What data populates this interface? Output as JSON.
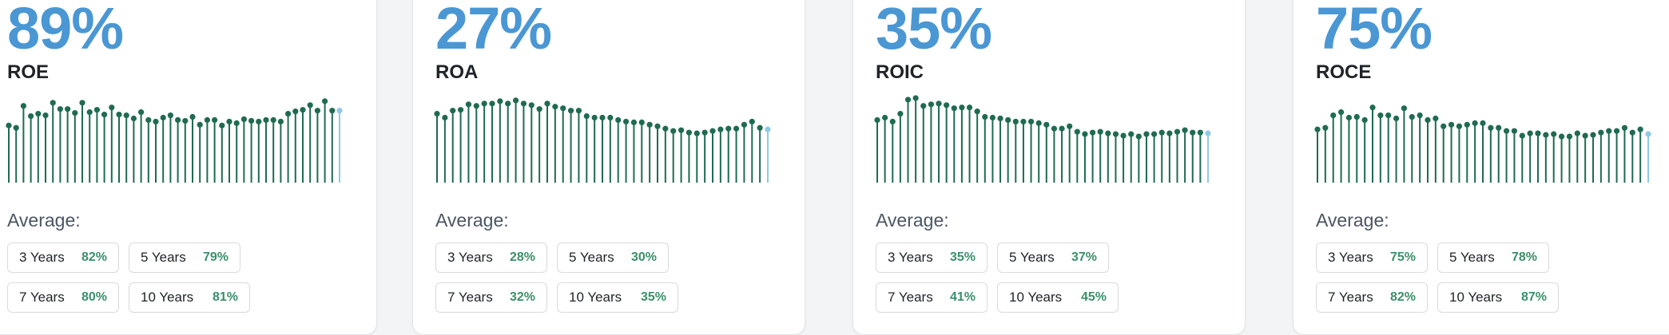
{
  "colors": {
    "accent": "#4a97d4",
    "bar": "#1f6b52",
    "bar_last": "#8ecae6",
    "positive": "#3a8f6a"
  },
  "cards": [
    {
      "value": "89%",
      "metric": "ROE",
      "average_label": "Average:",
      "averages": [
        {
          "period": "3 Years",
          "value": "82%"
        },
        {
          "period": "5 Years",
          "value": "79%"
        },
        {
          "period": "7 Years",
          "value": "80%"
        },
        {
          "period": "10 Years",
          "value": "81%"
        }
      ],
      "spark": [
        0.73,
        0.7,
        0.98,
        0.85,
        0.88,
        0.86,
        1.02,
        0.94,
        0.94,
        0.89,
        1.02,
        0.9,
        0.93,
        0.87,
        0.96,
        0.87,
        0.86,
        0.82,
        0.9,
        0.8,
        0.78,
        0.83,
        0.86,
        0.8,
        0.79,
        0.84,
        0.74,
        0.8,
        0.8,
        0.73,
        0.78,
        0.76,
        0.81,
        0.79,
        0.78,
        0.8,
        0.8,
        0.78,
        0.88,
        0.91,
        0.93,
        0.99,
        0.92,
        1.04,
        0.92,
        0.92
      ]
    },
    {
      "value": "27%",
      "metric": "ROA",
      "average_label": "Average:",
      "averages": [
        {
          "period": "3 Years",
          "value": "28%"
        },
        {
          "period": "5 Years",
          "value": "30%"
        },
        {
          "period": "7 Years",
          "value": "32%"
        },
        {
          "period": "10 Years",
          "value": "35%"
        }
      ],
      "spark": [
        0.88,
        0.83,
        0.92,
        0.93,
        1.0,
        0.98,
        1.01,
        1.01,
        1.04,
        1.01,
        1.05,
        1.01,
        0.99,
        0.94,
        1.01,
        0.97,
        0.95,
        0.92,
        0.92,
        0.85,
        0.83,
        0.83,
        0.83,
        0.8,
        0.78,
        0.77,
        0.77,
        0.74,
        0.72,
        0.69,
        0.66,
        0.67,
        0.64,
        0.63,
        0.64,
        0.66,
        0.68,
        0.69,
        0.69,
        0.74,
        0.78,
        0.7,
        0.68
      ]
    },
    {
      "value": "35%",
      "metric": "ROIC",
      "average_label": "Average:",
      "averages": [
        {
          "period": "3 Years",
          "value": "35%"
        },
        {
          "period": "5 Years",
          "value": "37%"
        },
        {
          "period": "7 Years",
          "value": "41%"
        },
        {
          "period": "10 Years",
          "value": "45%"
        }
      ],
      "spark": [
        0.8,
        0.83,
        0.78,
        0.88,
        1.06,
        1.08,
        0.98,
        1.0,
        1.01,
        0.99,
        0.95,
        0.96,
        0.96,
        0.91,
        0.84,
        0.83,
        0.82,
        0.8,
        0.78,
        0.78,
        0.78,
        0.76,
        0.74,
        0.69,
        0.69,
        0.72,
        0.65,
        0.62,
        0.64,
        0.65,
        0.63,
        0.62,
        0.6,
        0.62,
        0.59,
        0.62,
        0.62,
        0.64,
        0.63,
        0.65,
        0.67,
        0.64,
        0.64,
        0.63
      ]
    },
    {
      "value": "75%",
      "metric": "ROCE",
      "average_label": "Average:",
      "averages": [
        {
          "period": "3 Years",
          "value": "75%"
        },
        {
          "period": "5 Years",
          "value": "78%"
        },
        {
          "period": "7 Years",
          "value": "82%"
        },
        {
          "period": "10 Years",
          "value": "87%"
        }
      ],
      "spark": [
        0.68,
        0.7,
        0.86,
        0.9,
        0.83,
        0.84,
        0.8,
        0.96,
        0.86,
        0.86,
        0.82,
        0.95,
        0.84,
        0.86,
        0.8,
        0.82,
        0.72,
        0.74,
        0.72,
        0.74,
        0.76,
        0.76,
        0.7,
        0.7,
        0.66,
        0.66,
        0.6,
        0.63,
        0.63,
        0.61,
        0.62,
        0.59,
        0.59,
        0.63,
        0.6,
        0.61,
        0.64,
        0.66,
        0.66,
        0.7,
        0.64,
        0.68,
        0.62
      ]
    }
  ]
}
